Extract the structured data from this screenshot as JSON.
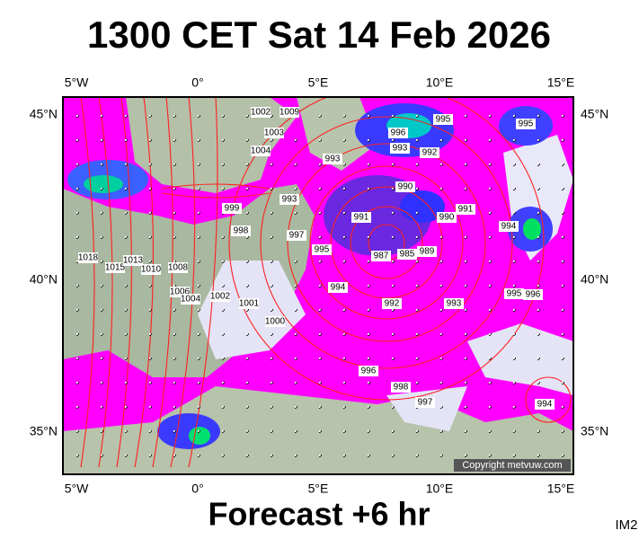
{
  "header": {
    "title": "1300 CET Sat 14 Feb 2026"
  },
  "map": {
    "lon_labels": [
      "5°W",
      "0°",
      "5°E",
      "10°E",
      "15°E"
    ],
    "lat_labels": [
      "45°N",
      "40°N",
      "35°N"
    ],
    "isobar_labels": [
      "1002",
      "1009",
      "1004",
      "1003",
      "995",
      "996",
      "993",
      "992",
      "993",
      "990",
      "990",
      "991",
      "991",
      "994",
      "999",
      "998",
      "993",
      "987",
      "985",
      "989",
      "995",
      "997",
      "994",
      "992",
      "993",
      "995",
      "996",
      "996",
      "998",
      "997",
      "994",
      "995",
      "1018",
      "1015",
      "1013",
      "1010",
      "1008",
      "1006",
      "1004",
      "1002",
      "1001",
      "1000"
    ],
    "copyright": "Copyright metvuw.com"
  },
  "footer": {
    "forecast": "Forecast +6 hr",
    "id": "IM2"
  }
}
